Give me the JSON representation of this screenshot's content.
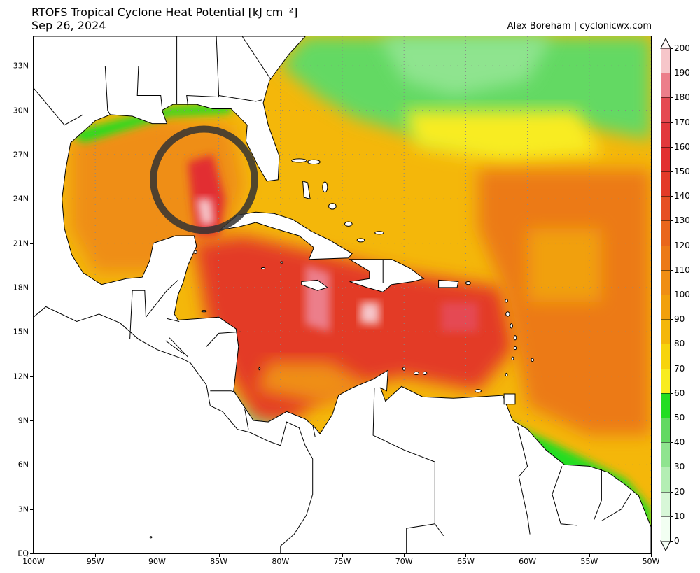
{
  "header": {
    "title_line1": "RTOFS Tropical Cyclone Heat Potential [kJ cm⁻²]",
    "title_line2": "Sep 26, 2024",
    "credit": "Alex Boreham | cyclonicwx.com"
  },
  "map": {
    "extent": {
      "lon_min": -100,
      "lon_max": -50,
      "lat_min": 0,
      "lat_max": 35
    },
    "lat_labels": [
      {
        "lat": 33,
        "label": "33N"
      },
      {
        "lat": 30,
        "label": "30N"
      },
      {
        "lat": 27,
        "label": "27N"
      },
      {
        "lat": 24,
        "label": "24N"
      },
      {
        "lat": 21,
        "label": "21N"
      },
      {
        "lat": 18,
        "label": "18N"
      },
      {
        "lat": 15,
        "label": "15N"
      },
      {
        "lat": 12,
        "label": "12N"
      },
      {
        "lat": 9,
        "label": "9N"
      },
      {
        "lat": 6,
        "label": "6N"
      },
      {
        "lat": 3,
        "label": "3N"
      },
      {
        "lat": 0,
        "label": "EQ"
      }
    ],
    "lon_labels": [
      {
        "lon": -100,
        "label": "100W"
      },
      {
        "lon": -95,
        "label": "95W"
      },
      {
        "lon": -90,
        "label": "90W"
      },
      {
        "lon": -85,
        "label": "85W"
      },
      {
        "lon": -80,
        "label": "80W"
      },
      {
        "lon": -75,
        "label": "75W"
      },
      {
        "lon": -70,
        "label": "70W"
      },
      {
        "lon": -65,
        "label": "65W"
      },
      {
        "lon": -60,
        "label": "60W"
      },
      {
        "lon": -55,
        "label": "55W"
      },
      {
        "lon": -50,
        "label": "50W"
      }
    ],
    "highlight_circle": {
      "lon": -86.2,
      "lat": 25.3,
      "radius_deg": 4.1,
      "color": "#333333"
    },
    "land_color": "#ffffff",
    "coast_color": "#000000",
    "graticule_color": "#888888"
  },
  "colorbar": {
    "labels": [
      "0",
      "10",
      "20",
      "30",
      "40",
      "50",
      "60",
      "70",
      "80",
      "90",
      "100",
      "110",
      "120",
      "130",
      "140",
      "150",
      "160",
      "170",
      "180",
      "190",
      "200"
    ],
    "colors": [
      "#f2fff2",
      "#d8f7d8",
      "#b4eeb4",
      "#8fe48f",
      "#63d963",
      "#22dd22",
      "#f8ec20",
      "#f7d40c",
      "#f4b70a",
      "#f1a00c",
      "#ef8e14",
      "#ec7a18",
      "#e9661c",
      "#e64f24",
      "#e33a28",
      "#e22f30",
      "#e2383c",
      "#e54a52",
      "#ec7e8a",
      "#f6c6ca",
      "#ffeef0"
    ]
  }
}
